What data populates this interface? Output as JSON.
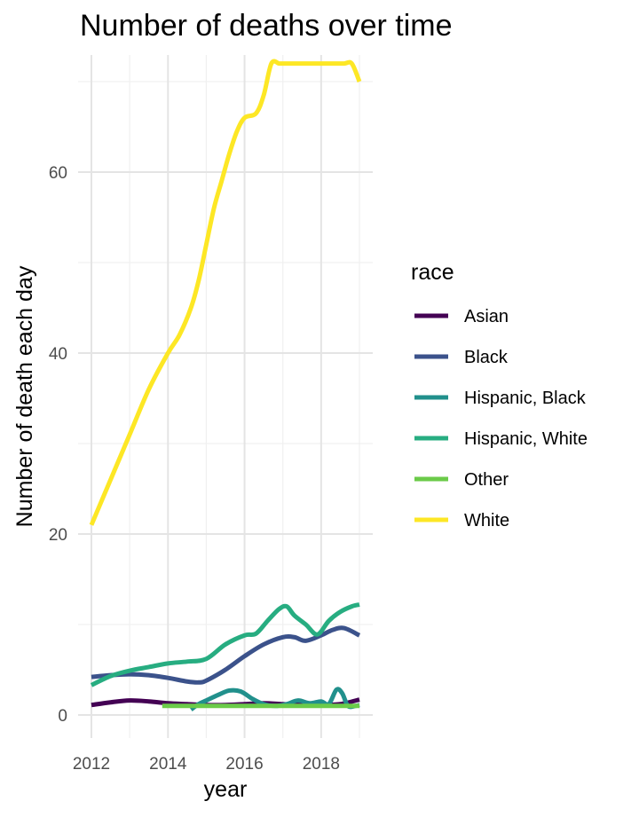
{
  "chart_data": {
    "type": "line",
    "title": "Number of deaths over time",
    "xlabel": "year",
    "ylabel": "Number of death each day",
    "xlim": [
      2011.98,
      2019.3
    ],
    "ylim": [
      -3,
      72
    ],
    "x_ticks": [
      2012,
      2014,
      2016,
      2018
    ],
    "y_ticks": [
      0,
      20,
      40,
      60
    ],
    "grid": true,
    "legend": {
      "title": "race",
      "position": "right"
    },
    "series": [
      {
        "name": "Asian",
        "color": "#440154",
        "x": [
          2012.0,
          2012.5,
          2013.0,
          2013.5,
          2014.0,
          2014.5,
          2015.0,
          2015.5,
          2016.0,
          2016.5,
          2017.0,
          2017.5,
          2018.0,
          2018.5,
          2019.0
        ],
        "y": [
          1.1,
          1.4,
          1.6,
          1.5,
          1.3,
          1.2,
          1.1,
          1.1,
          1.2,
          1.3,
          1.2,
          1.1,
          1.1,
          1.2,
          1.7
        ]
      },
      {
        "name": "Black",
        "color": "#3B528B",
        "x": [
          2012.0,
          2012.5,
          2013.0,
          2013.5,
          2014.0,
          2014.5,
          2014.8,
          2015.0,
          2015.5,
          2016.0,
          2016.5,
          2017.0,
          2017.3,
          2017.6,
          2018.0,
          2018.3,
          2018.6,
          2019.0
        ],
        "y": [
          4.2,
          4.4,
          4.5,
          4.4,
          4.1,
          3.7,
          3.6,
          3.8,
          5.0,
          6.5,
          7.8,
          8.6,
          8.6,
          8.2,
          8.8,
          9.4,
          9.6,
          8.8
        ]
      },
      {
        "name": "Hispanic, Black",
        "color": "#21908C",
        "x": [
          2014.6,
          2014.8,
          2015.0,
          2015.3,
          2015.6,
          2015.9,
          2016.2,
          2016.5,
          2016.8,
          2017.1,
          2017.4,
          2017.7,
          2018.0,
          2018.2,
          2018.4,
          2018.55,
          2018.7,
          2018.9,
          2019.0
        ],
        "y": [
          0.6,
          1.2,
          1.6,
          2.2,
          2.7,
          2.6,
          1.8,
          1.2,
          1.0,
          1.2,
          1.6,
          1.3,
          1.5,
          1.2,
          2.8,
          2.4,
          1.0,
          1.0,
          1.1
        ]
      },
      {
        "name": "Hispanic, White",
        "color": "#27AD81",
        "x": [
          2012.0,
          2012.5,
          2013.0,
          2013.5,
          2014.0,
          2014.5,
          2015.0,
          2015.5,
          2016.0,
          2016.3,
          2016.6,
          2016.9,
          2017.1,
          2017.3,
          2017.6,
          2017.9,
          2018.2,
          2018.5,
          2018.8,
          2019.0
        ],
        "y": [
          3.3,
          4.3,
          4.9,
          5.3,
          5.7,
          5.9,
          6.2,
          7.8,
          8.8,
          9.0,
          10.4,
          11.7,
          12.0,
          11.0,
          10.0,
          8.9,
          10.4,
          11.4,
          12.0,
          12.2
        ]
      },
      {
        "name": "Other",
        "color": "#6BCB49",
        "x": [
          2013.85,
          2014.5,
          2015.0,
          2015.5,
          2016.0,
          2016.5,
          2017.0,
          2017.5,
          2018.0,
          2018.5,
          2019.0
        ],
        "y": [
          1.0,
          1.0,
          1.0,
          1.0,
          1.0,
          1.0,
          1.0,
          1.0,
          1.0,
          1.0,
          1.0
        ]
      },
      {
        "name": "White",
        "color": "#FDE725",
        "x": [
          2012.0,
          2012.5,
          2013.0,
          2013.5,
          2014.0,
          2014.3,
          2014.6,
          2014.8,
          2015.0,
          2015.2,
          2015.4,
          2015.6,
          2015.8,
          2016.0,
          2016.3,
          2016.5,
          2016.7,
          2016.9,
          2017.0,
          2017.2,
          2017.4,
          2017.6,
          2017.8,
          2018.0,
          2018.3,
          2018.6,
          2018.8,
          2019.0
        ],
        "y": [
          21.0,
          26.0,
          31.0,
          36.0,
          40.0,
          42.0,
          45.0,
          48.0,
          52.0,
          56.0,
          59.0,
          62.0,
          64.5,
          66.0,
          66.5,
          68.5,
          72.0,
          76.0,
          77.5,
          79.0,
          79.2,
          78.0,
          77.0,
          76.5,
          75.0,
          73.5,
          72.0,
          70.0
        ]
      }
    ]
  }
}
